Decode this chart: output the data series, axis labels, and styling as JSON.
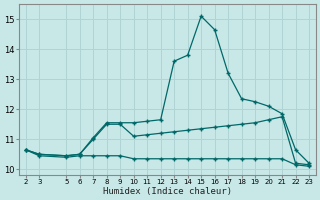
{
  "xlabel": "Humidex (Indice chaleur)",
  "bg_color": "#c8e8e8",
  "grid_color": "#b0d4d4",
  "line_color": "#006868",
  "x_ticks": [
    2,
    3,
    5,
    6,
    7,
    8,
    9,
    10,
    11,
    12,
    13,
    14,
    15,
    16,
    17,
    18,
    19,
    20,
    21,
    22,
    23
  ],
  "ylim": [
    9.8,
    15.5
  ],
  "xlim": [
    1.5,
    23.5
  ],
  "line_top_x": [
    2,
    3,
    5,
    6,
    7,
    8,
    9,
    10,
    11,
    12,
    13,
    14,
    15,
    16,
    17,
    18,
    19,
    20,
    21,
    22,
    23
  ],
  "line_top_y": [
    10.65,
    10.5,
    10.45,
    10.5,
    11.05,
    11.55,
    11.55,
    11.55,
    11.6,
    11.65,
    13.6,
    13.8,
    15.1,
    14.65,
    13.2,
    12.35,
    12.25,
    12.1,
    11.85,
    10.65,
    10.2
  ],
  "line_mid_x": [
    2,
    3,
    5,
    6,
    7,
    8,
    9,
    10,
    11,
    12,
    13,
    14,
    15,
    16,
    17,
    18,
    19,
    20,
    21,
    22,
    23
  ],
  "line_mid_y": [
    10.65,
    10.5,
    10.45,
    10.5,
    11.0,
    11.5,
    11.5,
    11.1,
    11.15,
    11.2,
    11.25,
    11.3,
    11.35,
    11.4,
    11.45,
    11.5,
    11.55,
    11.65,
    11.75,
    10.2,
    10.15
  ],
  "line_bot_x": [
    2,
    3,
    5,
    6,
    7,
    8,
    9,
    10,
    11,
    12,
    13,
    14,
    15,
    16,
    17,
    18,
    19,
    20,
    21,
    22,
    23
  ],
  "line_bot_y": [
    10.65,
    10.45,
    10.4,
    10.45,
    10.45,
    10.45,
    10.45,
    10.35,
    10.35,
    10.35,
    10.35,
    10.35,
    10.35,
    10.35,
    10.35,
    10.35,
    10.35,
    10.35,
    10.35,
    10.15,
    10.1
  ]
}
